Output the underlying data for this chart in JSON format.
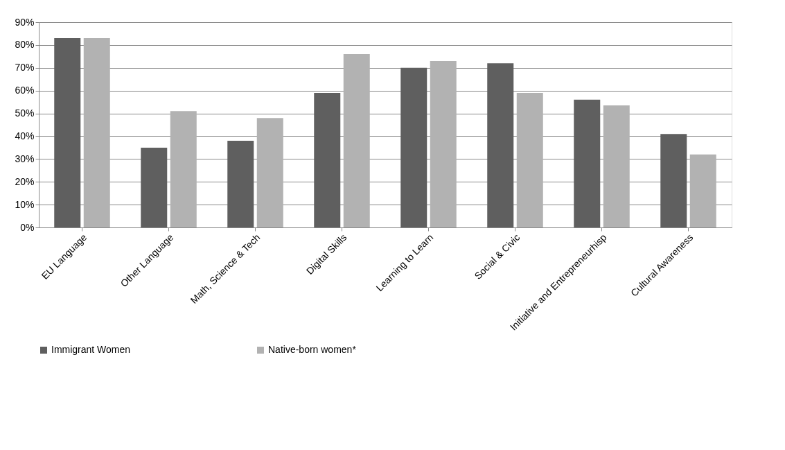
{
  "chart_data": {
    "type": "bar",
    "categories": [
      "EU Language",
      "Other Language",
      "Math, Science & Tech",
      "Digital Skills",
      "Learning to Learn",
      "Social & Civic",
      "Initiative and Entrepreneurhisp",
      "Cultural Awareness"
    ],
    "series": [
      {
        "name": "Immigrant Women",
        "color": "#5f5f5f",
        "values": [
          83,
          35,
          38,
          59,
          70,
          72,
          56,
          41
        ]
      },
      {
        "name": "Native-born women*",
        "color": "#b2b2b2",
        "values": [
          83,
          51,
          48,
          76,
          73,
          59,
          53.5,
          32
        ]
      }
    ],
    "ylim": [
      0,
      90
    ],
    "yticks": [
      {
        "value": 0,
        "label": "0%"
      },
      {
        "value": 10,
        "label": "10%"
      },
      {
        "value": 20,
        "label": "20%"
      },
      {
        "value": 30,
        "label": "30%"
      },
      {
        "value": 40,
        "label": "40%"
      },
      {
        "value": 50,
        "label": "50%"
      },
      {
        "value": 60,
        "label": "60%"
      },
      {
        "value": 70,
        "label": "70%"
      },
      {
        "value": 80,
        "label": "80%"
      },
      {
        "value": 90,
        "label": "90%"
      }
    ],
    "grid": "y",
    "legend": "bottom"
  }
}
